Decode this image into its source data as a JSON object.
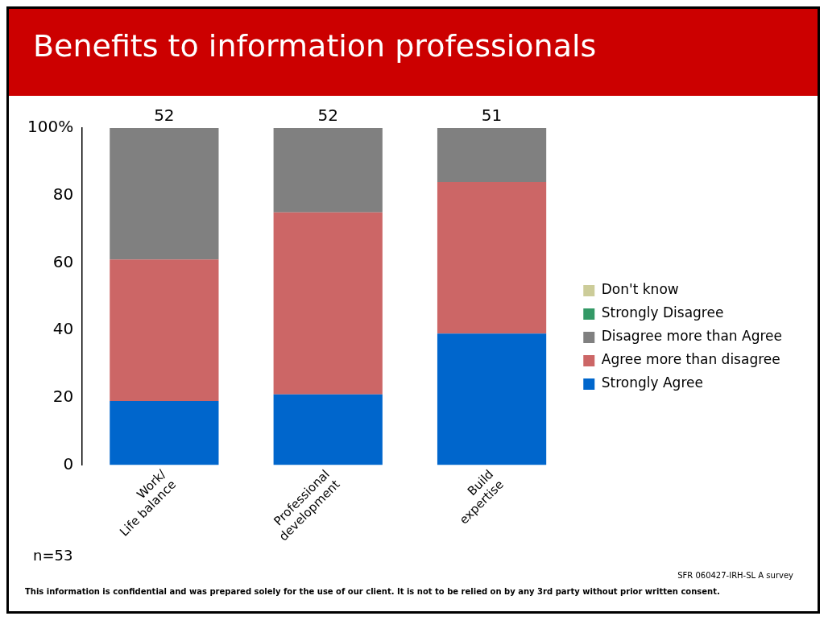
{
  "chart_data": {
    "type": "bar",
    "title": "Benefits to information professionals",
    "categories": [
      "Work/\nLife balance",
      "Professional\ndevelopment",
      "Build\nexpertise"
    ],
    "stacked": true,
    "series": [
      {
        "name": "Strongly Agree",
        "color": "#0066cc",
        "values": [
          19,
          21,
          39
        ]
      },
      {
        "name": "Agree more than disagree",
        "color": "#cc6666",
        "values": [
          42,
          54,
          45
        ]
      },
      {
        "name": "Disagree more than Agree",
        "color": "#808080",
        "values": [
          39,
          25,
          16
        ]
      },
      {
        "name": "Strongly Disagree",
        "color": "#339966",
        "values": [
          0,
          0,
          0
        ]
      },
      {
        "name": "Don't know",
        "color": "#cccc99",
        "values": [
          0,
          0,
          0
        ]
      }
    ],
    "ylim": [
      0,
      100
    ],
    "yticks": [
      0,
      20,
      40,
      60,
      80,
      {
        "value": 100,
        "label": "100%"
      }
    ],
    "grid": false,
    "legend": "right",
    "annotations": [
      {
        "text": "52",
        "x": "Work/\nLife balance",
        "y": 100
      },
      {
        "text": "52",
        "x": "Professional\ndevelopment",
        "y": 100
      },
      {
        "text": "51",
        "x": "Build\nexpertise",
        "y": 100
      },
      "n=53",
      "SFR 060427-IRH-SL A survey",
      "This information is confidential and was prepared solely for the use of our client. It is not to be relied on by any 3rd party without prior written consent."
    ]
  }
}
